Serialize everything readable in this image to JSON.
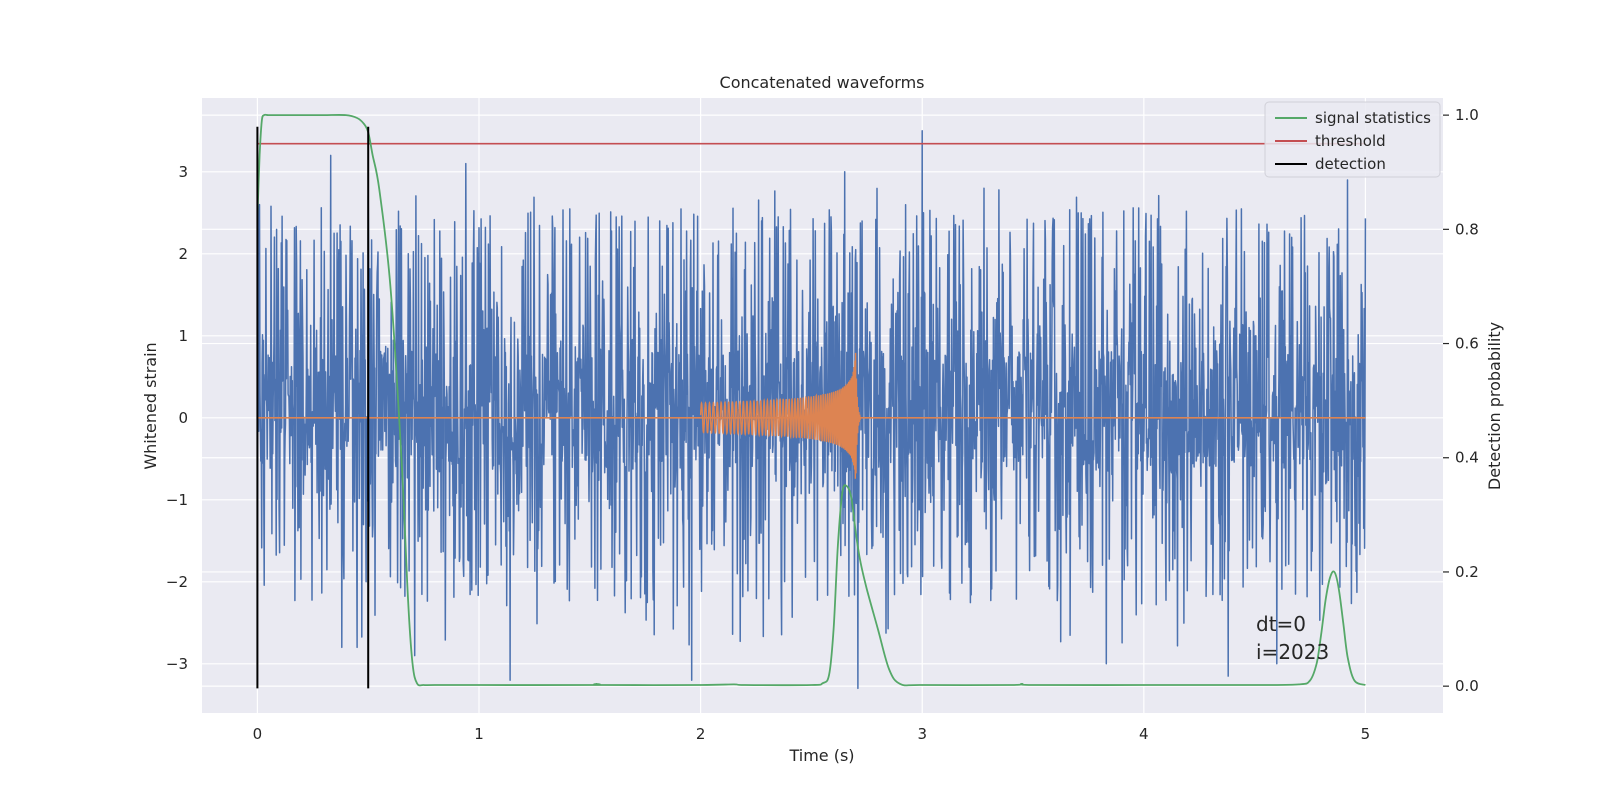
{
  "chart_data": {
    "type": "line",
    "title": "Concatenated waveforms",
    "xlabel": "Time (s)",
    "ylabel": "Whitened strain",
    "y2label": "Detection probability",
    "xlim": [
      -0.25,
      5.35
    ],
    "ylim": [
      -3.6,
      3.9
    ],
    "y2lim": [
      -0.047,
      1.03
    ],
    "x_ticks": [
      0,
      1,
      2,
      3,
      4,
      5
    ],
    "y_ticks": [
      -3,
      -2,
      -1,
      0,
      1,
      2,
      3
    ],
    "y2_ticks": [
      0.0,
      0.2,
      0.4,
      0.6,
      0.8,
      1.0
    ],
    "x_tick_labels": [
      "0",
      "1",
      "2",
      "3",
      "4",
      "5"
    ],
    "y_tick_labels": [
      "−3",
      "−2",
      "−1",
      "0",
      "1",
      "2",
      "3"
    ],
    "y2_tick_labels": [
      "0.0",
      "0.2",
      "0.4",
      "0.6",
      "0.8",
      "1.0"
    ],
    "grid": true,
    "legend_position": "top-right",
    "series": [
      {
        "name": "",
        "axis": "left",
        "kind": "noise",
        "color": "#4c72b0",
        "x_range": [
          0,
          5
        ],
        "typical_range": [
          -1.7,
          1.9
        ],
        "dense_band": [
          -0.6,
          0.8
        ],
        "peaks": [
          {
            "x": 0.01,
            "y": 2.6
          },
          {
            "x": 0.33,
            "y": 3.2
          },
          {
            "x": 0.5,
            "y": 2.7
          },
          {
            "x": 0.94,
            "y": 3.1
          },
          {
            "x": 2.65,
            "y": 3.0
          },
          {
            "x": 3.0,
            "y": 3.5
          },
          {
            "x": 4.92,
            "y": 2.9
          },
          {
            "x": 0.38,
            "y": -2.8
          },
          {
            "x": 0.45,
            "y": -2.8
          },
          {
            "x": 0.71,
            "y": -2.9
          },
          {
            "x": 1.14,
            "y": -3.2
          },
          {
            "x": 1.96,
            "y": -3.2
          },
          {
            "x": 2.71,
            "y": -3.3
          },
          {
            "x": 3.83,
            "y": -3.0
          },
          {
            "x": 4.38,
            "y": -3.15
          },
          {
            "x": 4.6,
            "y": -3.0
          }
        ]
      },
      {
        "name": "",
        "axis": "left",
        "kind": "chirp",
        "color": "#dd8452",
        "x_range": [
          2.0,
          2.72
        ],
        "merger_time": 2.7,
        "amplitude_start": 0.18,
        "amplitude_peak": 0.8
      },
      {
        "name": "signal statistics",
        "axis": "right",
        "color": "#55a868",
        "x": [
          0.0,
          0.01,
          0.02,
          0.03,
          0.05,
          0.1,
          0.2,
          0.3,
          0.4,
          0.45,
          0.48,
          0.5,
          0.52,
          0.55,
          0.6,
          0.65,
          0.68,
          0.7,
          0.72,
          0.75,
          0.8,
          1.0,
          1.5,
          1.53,
          1.56,
          2.0,
          2.15,
          2.2,
          2.5,
          2.55,
          2.58,
          2.6,
          2.62,
          2.64,
          2.66,
          2.68,
          2.7,
          2.72,
          2.75,
          2.8,
          2.85,
          2.9,
          3.0,
          3.4,
          3.45,
          3.5,
          4.0,
          4.5,
          4.7,
          4.75,
          4.78,
          4.8,
          4.82,
          4.84,
          4.86,
          4.88,
          4.9,
          4.92,
          4.95,
          5.0
        ],
        "values": [
          0.82,
          0.93,
          0.99,
          1.0,
          1.0,
          1.0,
          1.0,
          1.0,
          1.0,
          0.995,
          0.985,
          0.97,
          0.93,
          0.87,
          0.7,
          0.4,
          0.15,
          0.04,
          0.005,
          0.002,
          0.002,
          0.002,
          0.002,
          0.004,
          0.002,
          0.002,
          0.003,
          0.002,
          0.002,
          0.005,
          0.02,
          0.1,
          0.25,
          0.34,
          0.35,
          0.33,
          0.27,
          0.22,
          0.17,
          0.1,
          0.03,
          0.004,
          0.002,
          0.002,
          0.004,
          0.002,
          0.002,
          0.002,
          0.003,
          0.01,
          0.04,
          0.09,
          0.15,
          0.19,
          0.2,
          0.17,
          0.11,
          0.05,
          0.01,
          0.002
        ]
      },
      {
        "name": "threshold",
        "axis": "right",
        "color": "#c44e52",
        "x": [
          0,
          5
        ],
        "values": [
          0.95,
          0.95
        ]
      },
      {
        "name": "detection",
        "axis": "left",
        "color": "#000000",
        "x": [
          0.0,
          0.5
        ],
        "y_range": [
          -3.3,
          3.55
        ]
      }
    ],
    "annotations": [
      "dt=0",
      "i=2023"
    ]
  }
}
